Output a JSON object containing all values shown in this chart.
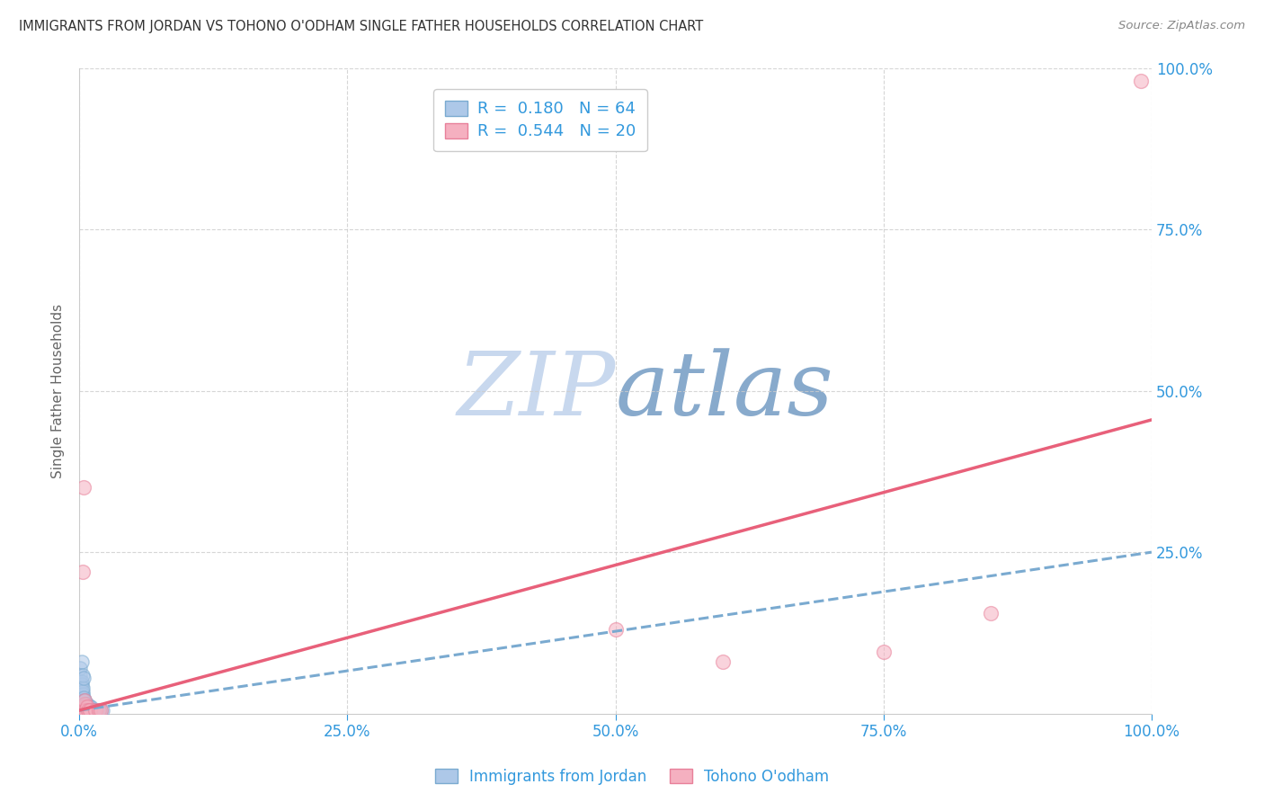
{
  "title": "IMMIGRANTS FROM JORDAN VS TOHONO O'ODHAM SINGLE FATHER HOUSEHOLDS CORRELATION CHART",
  "source": "Source: ZipAtlas.com",
  "ylabel": "Single Father Households",
  "xlim": [
    0,
    1.0
  ],
  "ylim": [
    0,
    1.0
  ],
  "xtick_positions": [
    0.0,
    0.25,
    0.5,
    0.75,
    1.0
  ],
  "ytick_positions": [
    0.25,
    0.5,
    0.75,
    1.0
  ],
  "blue_R": 0.18,
  "blue_N": 64,
  "pink_R": 0.544,
  "pink_N": 20,
  "blue_color": "#adc8e8",
  "pink_color": "#f5b0c0",
  "blue_edge_color": "#7aaad0",
  "pink_edge_color": "#e8809a",
  "blue_line_color": "#7aaad0",
  "pink_line_color": "#e8607a",
  "title_color": "#333333",
  "axis_color": "#3399dd",
  "grid_color": "#cccccc",
  "watermark_zip_color": "#c8d8ee",
  "watermark_atlas_color": "#88aacc",
  "blue_scatter_x": [
    0.001,
    0.001,
    0.001,
    0.001,
    0.001,
    0.001,
    0.001,
    0.001,
    0.001,
    0.001,
    0.002,
    0.002,
    0.002,
    0.002,
    0.002,
    0.002,
    0.002,
    0.002,
    0.002,
    0.002,
    0.003,
    0.003,
    0.003,
    0.003,
    0.003,
    0.003,
    0.003,
    0.003,
    0.004,
    0.004,
    0.004,
    0.004,
    0.004,
    0.005,
    0.005,
    0.005,
    0.005,
    0.006,
    0.006,
    0.006,
    0.007,
    0.007,
    0.007,
    0.008,
    0.008,
    0.009,
    0.009,
    0.01,
    0.01,
    0.011,
    0.011,
    0.012,
    0.013,
    0.014,
    0.015,
    0.016,
    0.017,
    0.018,
    0.02,
    0.022,
    0.001,
    0.002,
    0.003,
    0.004
  ],
  "blue_scatter_y": [
    0.005,
    0.01,
    0.015,
    0.02,
    0.025,
    0.03,
    0.035,
    0.04,
    0.05,
    0.06,
    0.005,
    0.01,
    0.015,
    0.02,
    0.025,
    0.03,
    0.035,
    0.04,
    0.045,
    0.05,
    0.005,
    0.01,
    0.015,
    0.02,
    0.025,
    0.03,
    0.035,
    0.04,
    0.005,
    0.01,
    0.015,
    0.02,
    0.025,
    0.005,
    0.01,
    0.015,
    0.02,
    0.005,
    0.01,
    0.015,
    0.005,
    0.01,
    0.015,
    0.005,
    0.01,
    0.005,
    0.01,
    0.005,
    0.01,
    0.005,
    0.01,
    0.005,
    0.005,
    0.005,
    0.005,
    0.005,
    0.005,
    0.005,
    0.005,
    0.005,
    0.07,
    0.08,
    0.06,
    0.055
  ],
  "pink_scatter_x": [
    0.003,
    0.004,
    0.005,
    0.005,
    0.005,
    0.005,
    0.006,
    0.007,
    0.008,
    0.01,
    0.015,
    0.018,
    0.02,
    0.5,
    0.6,
    0.75,
    0.85,
    0.003,
    0.004,
    0.99
  ],
  "pink_scatter_y": [
    0.005,
    0.005,
    0.005,
    0.01,
    0.015,
    0.02,
    0.005,
    0.01,
    0.005,
    0.005,
    0.005,
    0.005,
    0.005,
    0.13,
    0.08,
    0.095,
    0.155,
    0.22,
    0.35,
    0.98
  ],
  "blue_trend_start_x": 0.0,
  "blue_trend_start_y": 0.005,
  "blue_trend_end_x": 1.0,
  "blue_trend_end_y": 0.25,
  "pink_trend_start_x": 0.0,
  "pink_trend_start_y": 0.005,
  "pink_trend_end_x": 1.0,
  "pink_trend_end_y": 0.455
}
